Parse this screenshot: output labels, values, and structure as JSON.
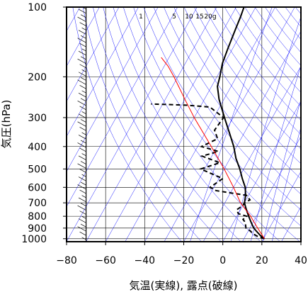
{
  "chart_data": {
    "type": "line",
    "title": "",
    "xlabel": "気温(実線), 露点(破線)",
    "ylabel": "気圧(hPa)",
    "x_axis": {
      "min": -80,
      "max": 40,
      "ticks": [
        -80,
        -60,
        -40,
        -20,
        0,
        20,
        40
      ],
      "tick_labels": [
        "−80",
        "−60",
        "−40",
        "−20",
        "0",
        "20",
        "40"
      ]
    },
    "y_axis": {
      "scale": "log",
      "min": 1030,
      "max": 100,
      "ticks": [
        100,
        200,
        300,
        400,
        500,
        600,
        700,
        800,
        900,
        1000
      ],
      "tick_labels": [
        "100",
        "200",
        "300",
        "400",
        "500",
        "600",
        "700",
        "800",
        "900",
        "1000"
      ]
    },
    "skew_deg_per_decade": 66,
    "grid": true,
    "mixing_ratio_labels": [
      "1",
      "5",
      "10",
      "15",
      "20g"
    ],
    "series": [
      {
        "role": "temperature",
        "style": "solid",
        "color": "#000000",
        "points": [
          [
            1000,
            20.5
          ],
          [
            975,
            18
          ],
          [
            950,
            16
          ],
          [
            925,
            14
          ],
          [
            900,
            12
          ],
          [
            875,
            10.5
          ],
          [
            850,
            9
          ],
          [
            800,
            6
          ],
          [
            750,
            3
          ],
          [
            700,
            0
          ],
          [
            650,
            -1.5
          ],
          [
            600,
            -4
          ],
          [
            550,
            -8
          ],
          [
            500,
            -12
          ],
          [
            450,
            -17
          ],
          [
            400,
            -21.5
          ],
          [
            350,
            -27.5
          ],
          [
            300,
            -34.5
          ],
          [
            250,
            -42.5
          ],
          [
            220,
            -47
          ],
          [
            200,
            -48.5
          ],
          [
            175,
            -51
          ],
          [
            150,
            -52.5
          ],
          [
            125,
            -54
          ],
          [
            110,
            -55
          ],
          [
            100,
            -56
          ]
        ]
      },
      {
        "role": "dewpoint",
        "style": "dashed",
        "color": "#000000",
        "points": [
          [
            1000,
            20.5
          ],
          [
            975,
            16
          ],
          [
            950,
            13
          ],
          [
            925,
            11
          ],
          [
            900,
            8
          ],
          [
            875,
            7
          ],
          [
            850,
            6
          ],
          [
            825,
            4
          ],
          [
            800,
            5
          ],
          [
            780,
            0
          ],
          [
            750,
            -2
          ],
          [
            720,
            0
          ],
          [
            700,
            0
          ],
          [
            680,
            2
          ],
          [
            650,
            -1
          ],
          [
            620,
            -18
          ],
          [
            600,
            -22
          ],
          [
            550,
            -18
          ],
          [
            500,
            -32
          ],
          [
            470,
            -24
          ],
          [
            440,
            -35
          ],
          [
            420,
            -28
          ],
          [
            400,
            -38
          ],
          [
            370,
            -32
          ],
          [
            340,
            -36
          ],
          [
            300,
            -35
          ],
          [
            270,
            -45
          ],
          [
            265,
            -58
          ],
          [
            262,
            -76
          ]
        ]
      },
      {
        "role": "reference",
        "style": "solid",
        "color": "#ff0000",
        "points": [
          [
            1000,
            20.5
          ],
          [
            900,
            14
          ],
          [
            800,
            7
          ],
          [
            700,
            -2
          ],
          [
            600,
            -10
          ],
          [
            500,
            -20
          ],
          [
            400,
            -33
          ],
          [
            300,
            -50
          ],
          [
            250,
            -60
          ],
          [
            200,
            -72
          ],
          [
            180,
            -78
          ],
          [
            165,
            -84
          ]
        ]
      }
    ],
    "wind_barbs": {
      "column_temp_c": -70,
      "count": 56
    }
  }
}
